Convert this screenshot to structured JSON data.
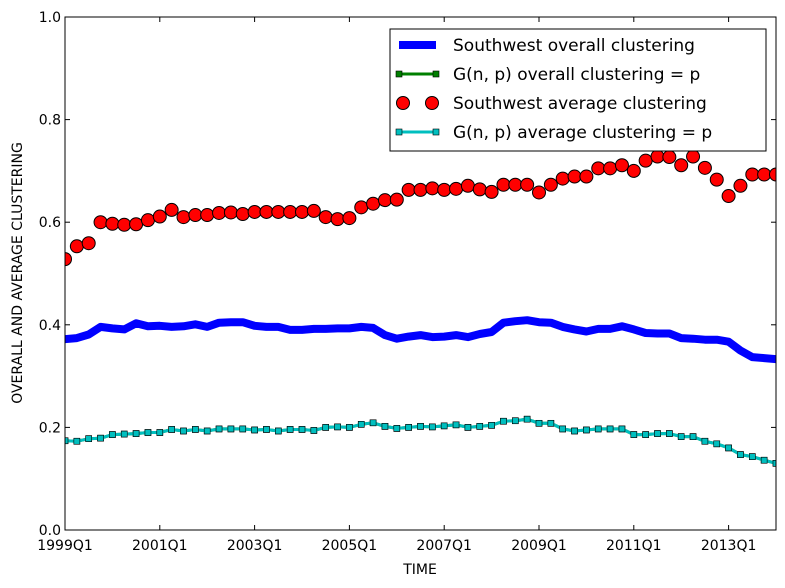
{
  "chart_data": {
    "type": "line",
    "title": "",
    "xlabel": "TIME",
    "ylabel": "OVERALL AND AVERAGE CLUSTERING",
    "ylim": [
      0.0,
      1.0
    ],
    "xlim": [
      0,
      60
    ],
    "yticks": [
      {
        "value": 0.0,
        "label": "0.0"
      },
      {
        "value": 0.2,
        "label": "0.2"
      },
      {
        "value": 0.4,
        "label": "0.4"
      },
      {
        "value": 0.6,
        "label": "0.6"
      },
      {
        "value": 0.8,
        "label": "0.8"
      },
      {
        "value": 1.0,
        "label": "1.0"
      }
    ],
    "xticks": [
      {
        "index": 0,
        "label": "1999Q1"
      },
      {
        "index": 8,
        "label": "2001Q1"
      },
      {
        "index": 16,
        "label": "2003Q1"
      },
      {
        "index": 24,
        "label": "2005Q1"
      },
      {
        "index": 32,
        "label": "2007Q1"
      },
      {
        "index": 40,
        "label": "2009Q1"
      },
      {
        "index": 48,
        "label": "2011Q1"
      },
      {
        "index": 56,
        "label": "2013Q1"
      }
    ],
    "legend_position": "top-right",
    "series": [
      {
        "name": "Southwest overall clustering",
        "style": "thick-line",
        "color": "#0000ff",
        "values": [
          0.372,
          0.374,
          0.381,
          0.396,
          0.393,
          0.391,
          0.403,
          0.397,
          0.398,
          0.396,
          0.397,
          0.401,
          0.396,
          0.404,
          0.405,
          0.405,
          0.398,
          0.396,
          0.396,
          0.39,
          0.39,
          0.392,
          0.392,
          0.393,
          0.393,
          0.396,
          0.394,
          0.38,
          0.373,
          0.377,
          0.38,
          0.376,
          0.377,
          0.38,
          0.376,
          0.382,
          0.386,
          0.404,
          0.407,
          0.409,
          0.405,
          0.404,
          0.396,
          0.391,
          0.387,
          0.392,
          0.392,
          0.397,
          0.391,
          0.384,
          0.383,
          0.383,
          0.374,
          0.373,
          0.371,
          0.371,
          0.367,
          0.35,
          0.337,
          0.335,
          0.333
        ]
      },
      {
        "name": "G(n, p) overall clustering = p",
        "style": "line-square",
        "color": "#007f00",
        "values": [
          0.174,
          0.173,
          0.178,
          0.179,
          0.186,
          0.187,
          0.188,
          0.19,
          0.19,
          0.196,
          0.193,
          0.196,
          0.193,
          0.197,
          0.197,
          0.197,
          0.195,
          0.196,
          0.193,
          0.196,
          0.196,
          0.194,
          0.2,
          0.201,
          0.2,
          0.206,
          0.209,
          0.202,
          0.198,
          0.2,
          0.202,
          0.201,
          0.203,
          0.205,
          0.2,
          0.202,
          0.204,
          0.212,
          0.213,
          0.216,
          0.208,
          0.208,
          0.197,
          0.193,
          0.195,
          0.197,
          0.197,
          0.197,
          0.186,
          0.186,
          0.188,
          0.188,
          0.182,
          0.182,
          0.173,
          0.168,
          0.16,
          0.147,
          0.143,
          0.136,
          0.13
        ]
      },
      {
        "name": "Southwest average clustering",
        "style": "markers-circle",
        "color": "#ff0000",
        "values": [
          0.528,
          0.553,
          0.559,
          0.6,
          0.597,
          0.595,
          0.596,
          0.604,
          0.611,
          0.624,
          0.61,
          0.614,
          0.614,
          0.618,
          0.619,
          0.616,
          0.62,
          0.62,
          0.62,
          0.62,
          0.62,
          0.622,
          0.61,
          0.606,
          0.608,
          0.629,
          0.636,
          0.643,
          0.644,
          0.663,
          0.663,
          0.666,
          0.663,
          0.665,
          0.671,
          0.664,
          0.659,
          0.673,
          0.673,
          0.673,
          0.658,
          0.673,
          0.685,
          0.689,
          0.689,
          0.705,
          0.705,
          0.711,
          0.7,
          0.72,
          0.728,
          0.727,
          0.711,
          0.728,
          0.706,
          0.683,
          0.651,
          0.671,
          0.693,
          0.693,
          0.693
        ]
      },
      {
        "name": "G(n, p) average clustering = p",
        "style": "line-square",
        "color": "#00bfbf",
        "values": [
          0.174,
          0.173,
          0.178,
          0.179,
          0.186,
          0.187,
          0.188,
          0.19,
          0.19,
          0.196,
          0.193,
          0.196,
          0.193,
          0.197,
          0.197,
          0.197,
          0.195,
          0.196,
          0.193,
          0.196,
          0.196,
          0.194,
          0.2,
          0.201,
          0.2,
          0.206,
          0.209,
          0.202,
          0.198,
          0.2,
          0.202,
          0.201,
          0.203,
          0.205,
          0.2,
          0.202,
          0.204,
          0.212,
          0.213,
          0.216,
          0.208,
          0.208,
          0.197,
          0.193,
          0.195,
          0.197,
          0.197,
          0.197,
          0.186,
          0.186,
          0.188,
          0.188,
          0.182,
          0.182,
          0.173,
          0.168,
          0.16,
          0.147,
          0.143,
          0.136,
          0.13
        ]
      }
    ]
  }
}
